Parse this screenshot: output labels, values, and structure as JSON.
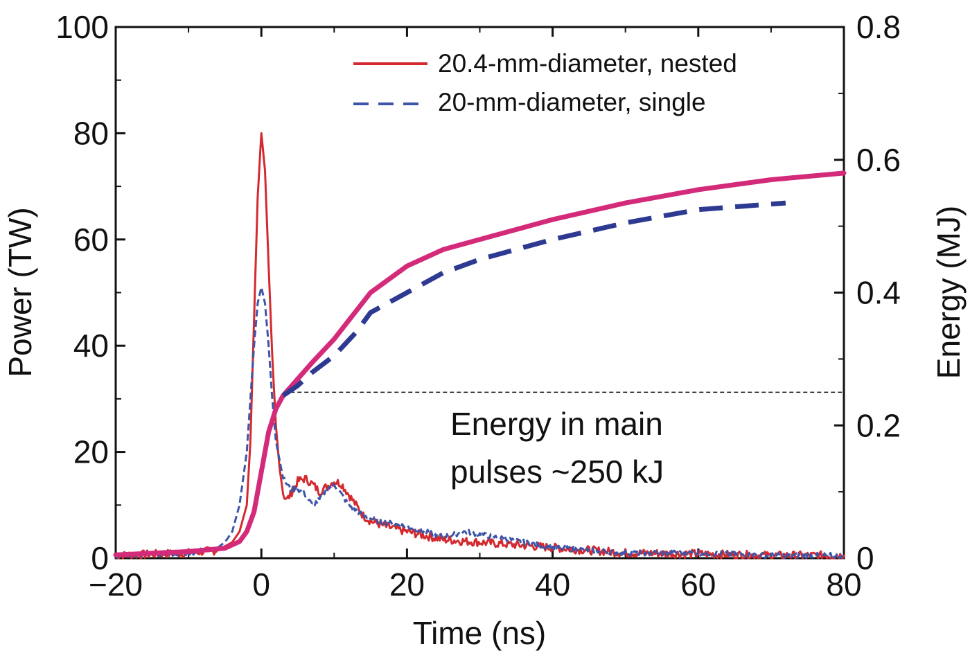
{
  "chart_data": {
    "type": "line",
    "title": "",
    "xlabel": "Time (ns)",
    "ylabel": "Power (TW)",
    "y2label": "Energy (MJ)",
    "xlim": [
      -20,
      80
    ],
    "ylim": [
      0,
      100
    ],
    "y2lim": [
      0,
      0.8
    ],
    "x_ticks": [
      -20,
      0,
      20,
      40,
      60,
      80
    ],
    "x_tick_labels": [
      "−20",
      "0",
      "20",
      "40",
      "60",
      "80"
    ],
    "y_ticks": [
      0,
      20,
      40,
      60,
      80,
      100
    ],
    "y_tick_labels": [
      "0",
      "20",
      "40",
      "60",
      "80",
      "100"
    ],
    "y2_ticks": [
      0,
      0.2,
      0.4,
      0.6,
      0.8
    ],
    "y2_tick_labels": [
      "0",
      "0.2",
      "0.4",
      "0.6",
      "0.8"
    ],
    "grid": false,
    "legend_position": "top-right",
    "legend": [
      {
        "label": "20.4-mm-diameter, nested",
        "color": "#d42a2f",
        "dash": "solid"
      },
      {
        "label": "20-mm-diameter, single",
        "color": "#3d55a8",
        "dash": "dashed"
      }
    ],
    "annotation": {
      "lines": [
        "Energy in main",
        "pulses ~250 kJ"
      ],
      "reference_energy_MJ": 0.25,
      "reference_x_range": [
        4,
        80
      ]
    },
    "series": [
      {
        "name": "20.4-mm-diameter, nested",
        "quantity": "power",
        "axis": "left",
        "color": "#d42a2f",
        "dash": "solid",
        "x": [
          -20,
          -10,
          -6,
          -4,
          -3,
          -2,
          -1.5,
          -1,
          -0.5,
          0,
          0.5,
          1,
          1.5,
          2,
          2.5,
          3,
          3.5,
          4,
          5,
          6,
          7,
          8,
          9,
          10,
          11,
          12,
          13,
          14,
          15,
          17,
          20,
          25,
          30,
          35,
          40,
          50,
          60,
          70,
          80
        ],
        "y": [
          0.5,
          1,
          1.5,
          3,
          5,
          10,
          22,
          45,
          68,
          80,
          73,
          55,
          38,
          25,
          17,
          12,
          11,
          12,
          14.5,
          15,
          14,
          12.5,
          13.5,
          14.5,
          14,
          12,
          10,
          8,
          7,
          6,
          5,
          3.5,
          3,
          2.5,
          2,
          1,
          0.8,
          0.5,
          0.5
        ]
      },
      {
        "name": "20-mm-diameter, single",
        "quantity": "power",
        "axis": "left",
        "color": "#3d55a8",
        "dash": "dashed",
        "x": [
          -20,
          -10,
          -6,
          -5,
          -4,
          -3,
          -2,
          -1.5,
          -1,
          -0.5,
          0,
          0.5,
          1,
          1.5,
          2,
          3,
          4,
          5,
          6,
          7,
          8,
          9,
          10,
          11,
          12,
          14,
          16,
          20,
          25,
          28,
          32,
          40,
          50,
          60,
          70,
          80
        ],
        "y": [
          0.5,
          1,
          2,
          3,
          5,
          10,
          20,
          30,
          40,
          48,
          51,
          48,
          40,
          30,
          22,
          15,
          13,
          13,
          12,
          10,
          11,
          13,
          14,
          12,
          10,
          8,
          7,
          6,
          4,
          5,
          4,
          2,
          1,
          1,
          0.5,
          0.5
        ]
      },
      {
        "name": "20.4-mm-diameter, nested",
        "quantity": "energy",
        "axis": "right",
        "color": "#d42a7a",
        "dash": "solid",
        "x": [
          -20,
          -10,
          -5,
          -3,
          -2,
          -1,
          0,
          1,
          2,
          3,
          5,
          7,
          10,
          15,
          20,
          25,
          30,
          40,
          50,
          60,
          70,
          80
        ],
        "y": [
          0.005,
          0.01,
          0.015,
          0.025,
          0.04,
          0.07,
          0.13,
          0.19,
          0.225,
          0.245,
          0.27,
          0.295,
          0.33,
          0.4,
          0.44,
          0.465,
          0.48,
          0.51,
          0.535,
          0.555,
          0.57,
          0.58
        ]
      },
      {
        "name": "20-mm-diameter, single",
        "quantity": "energy",
        "axis": "right",
        "color": "#2e3a91",
        "dash": "dashed",
        "x": [
          3,
          5,
          7,
          10,
          13,
          15,
          20,
          25,
          30,
          40,
          50,
          60,
          72
        ],
        "y": [
          0.245,
          0.26,
          0.28,
          0.305,
          0.34,
          0.37,
          0.4,
          0.43,
          0.45,
          0.48,
          0.505,
          0.525,
          0.535
        ]
      }
    ]
  }
}
